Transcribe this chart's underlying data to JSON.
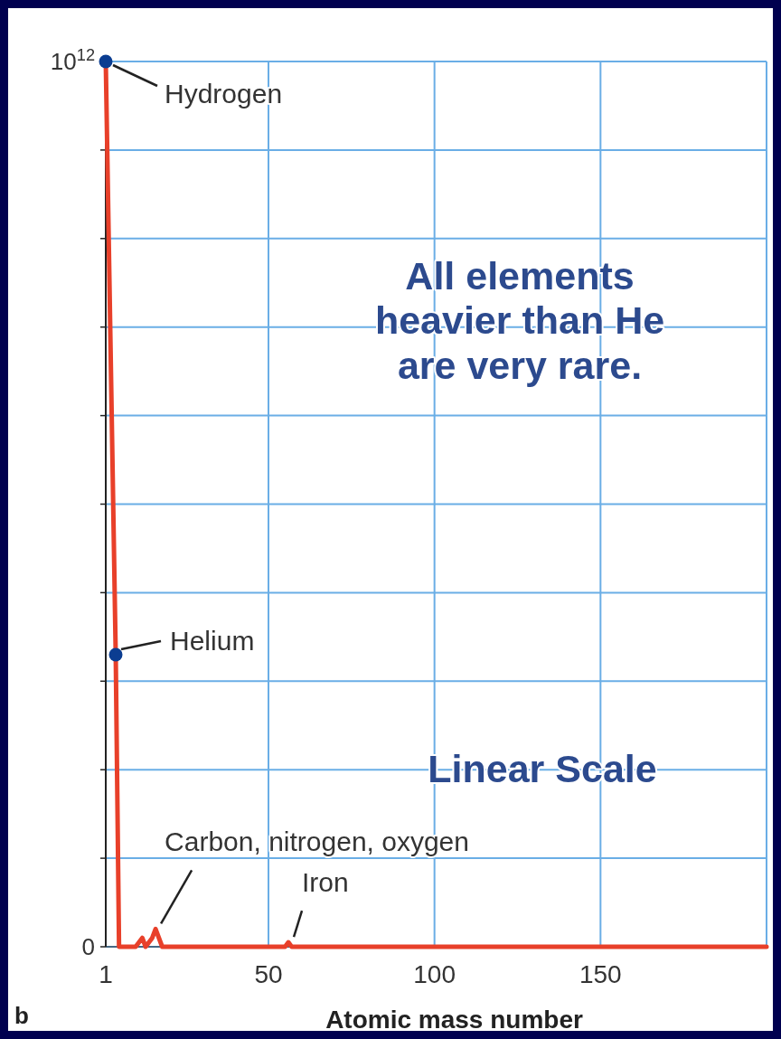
{
  "chart_data": {
    "type": "line",
    "xlabel": "Atomic mass number",
    "xlim": [
      1,
      200
    ],
    "xticks": [
      1,
      50,
      100,
      150
    ],
    "ylim": [
      0,
      1000000000000
    ],
    "yticks": [
      0,
      {
        "value": 100000000000,
        "label": null
      },
      {
        "value": 200000000000,
        "label": null
      },
      {
        "value": 300000000000,
        "label": null
      },
      {
        "value": 400000000000,
        "label": null
      },
      {
        "value": 500000000000,
        "label": null
      },
      {
        "value": 600000000000,
        "label": null
      },
      {
        "value": 700000000000,
        "label": null
      },
      {
        "value": 800000000000,
        "label": null
      },
      {
        "value": 900000000000,
        "label": null
      },
      {
        "value": 1000000000000,
        "label": "10$^{12}$"
      }
    ],
    "grid": true,
    "series": [
      {
        "type": "line",
        "color": "#e8402a",
        "marker": "none",
        "x": [
          1,
          4,
          5,
          10,
          12,
          13,
          15,
          16,
          18,
          55,
          56,
          57,
          200
        ],
        "values": [
          1000000000000,
          330000000000,
          0,
          0,
          10000000000,
          0,
          10000000000,
          20000000000,
          0,
          0,
          5000000000,
          0,
          0
        ]
      },
      {
        "type": "scatter",
        "color": "#0b3d91",
        "marker": "circle",
        "x": [
          1,
          4
        ],
        "values": [
          1000000000000,
          330000000000
        ]
      }
    ],
    "annotations": [
      {
        "text": "Hydrogen",
        "x": 1,
        "y": 1000000000000
      },
      {
        "text": "Helium",
        "x": 4,
        "y": 330000000000
      },
      {
        "text": "Carbon, nitrogen, oxygen",
        "x": 16,
        "y": 20000000000
      },
      {
        "text": "Iron",
        "x": 56,
        "y": 5000000000
      },
      "All elements heavier than He are very rare.",
      "Linear Scale",
      "b"
    ]
  }
}
